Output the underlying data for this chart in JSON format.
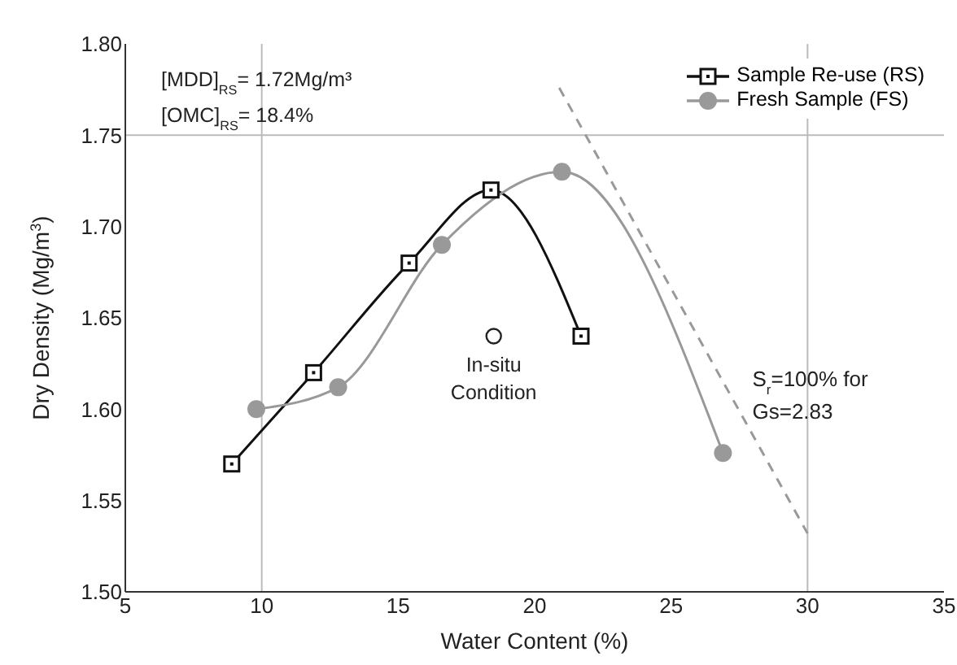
{
  "chart_data": {
    "type": "line",
    "xlabel": "Water Content (%)",
    "ylabel": "Dry Density (Mg/m$^{3}$)",
    "xlim": [
      5,
      35
    ],
    "xticks": [
      5,
      10,
      15,
      20,
      25,
      30,
      35
    ],
    "ylim": [
      1.5,
      1.8
    ],
    "yticks": [
      {
        "value": 1.5,
        "label": "1.50"
      },
      {
        "value": 1.55,
        "label": "1.55"
      },
      {
        "value": 1.6,
        "label": "1.60"
      },
      {
        "value": 1.65,
        "label": "1.65"
      },
      {
        "value": 1.7,
        "label": "1.70"
      },
      {
        "value": 1.75,
        "label": "1.75"
      },
      {
        "value": 1.8,
        "label": "1.80"
      }
    ],
    "legend": "top right",
    "ref_lines": [
      {
        "axis": "x",
        "value": 10,
        "color": "#bbbbbb"
      },
      {
        "axis": "x",
        "value": 30,
        "color": "#bbbbbb"
      },
      {
        "axis": "y",
        "value": 1.75,
        "color": "#bbbbbb"
      }
    ],
    "series": [
      {
        "name": "Sample Re-use (RS)",
        "color": "#111111",
        "marker": "square",
        "x": [
          8.9,
          11.9,
          15.4,
          18.4,
          21.7
        ],
        "values": [
          1.57,
          1.62,
          1.68,
          1.72,
          1.64
        ]
      },
      {
        "name": "Fresh Sample (FS)",
        "color": "#999999",
        "marker": "circle",
        "x": [
          9.8,
          12.8,
          16.6,
          21,
          26.9
        ],
        "values": [
          1.6,
          1.612,
          1.69,
          1.73,
          1.576
        ]
      },
      {
        "type": "scatter",
        "color": "#222222",
        "marker": "circle",
        "x": [
          18.5
        ],
        "values": [
          1.64
        ]
      },
      {
        "type": "line",
        "color": "#999999",
        "marker": "none",
        "line_style": "dashed",
        "x": [
          20.9,
          30
        ],
        "values": [
          1.776,
          1.532
        ]
      }
    ],
    "annotations": [
      "[MDD]$_{RS}$= 1.72Mg/m³",
      "[OMC]$_{RS}$= 18.4%",
      {
        "text": "In-situ Condition",
        "x": 18.5,
        "y": 1.64
      },
      {
        "text": "S$_{r}$=100% for Gs=2.83",
        "x": 27.5,
        "y": 1.6
      }
    ]
  }
}
